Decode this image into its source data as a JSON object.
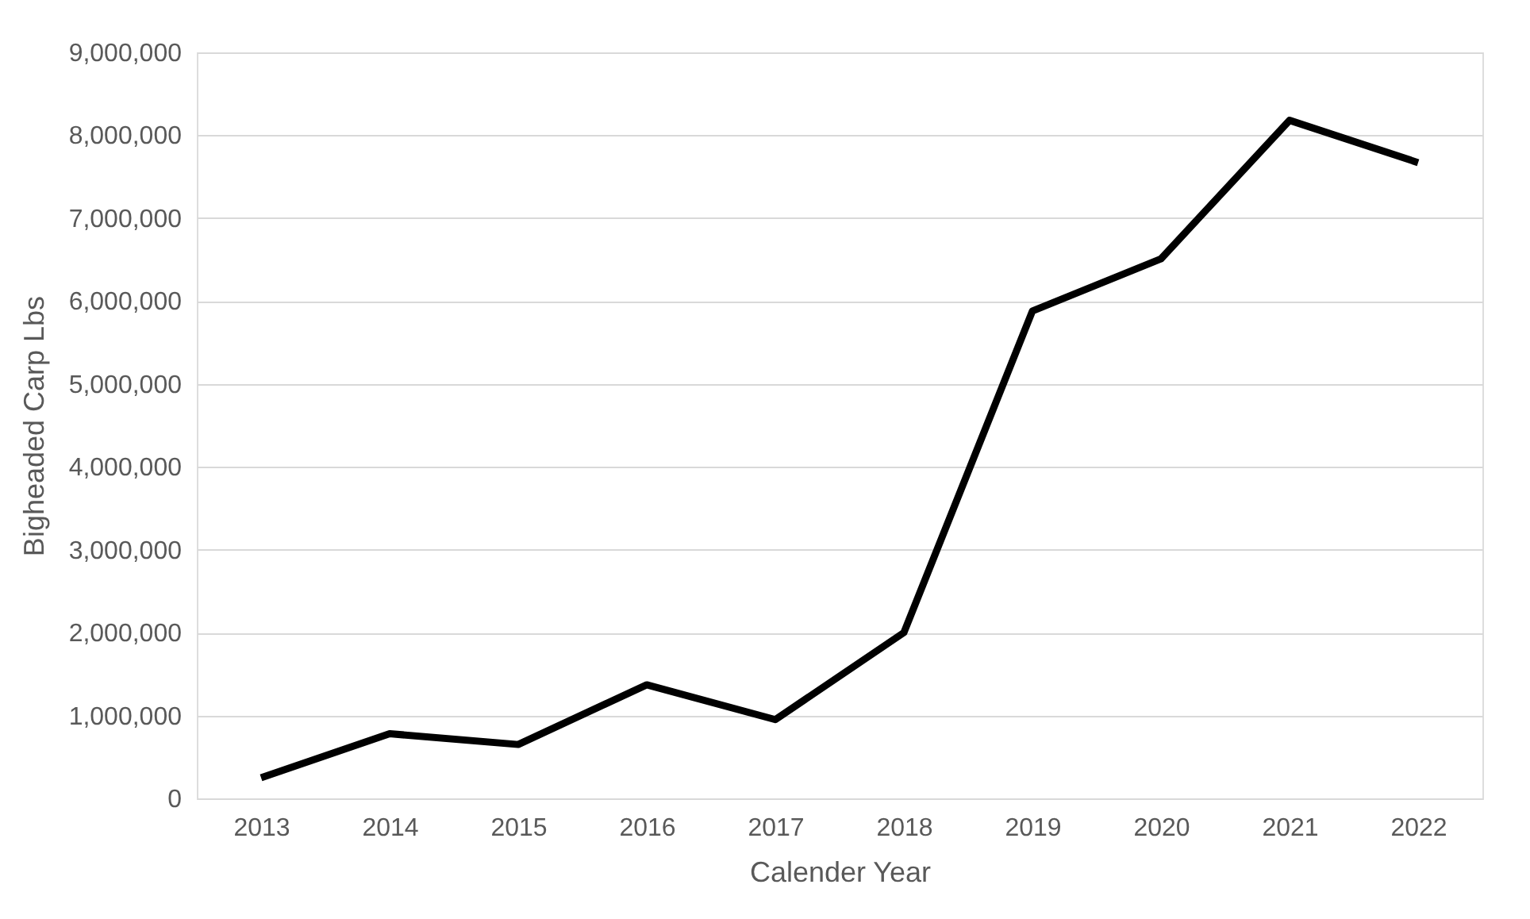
{
  "chart_data": {
    "type": "line",
    "xlabel": "Calender Year",
    "ylabel": "Bigheaded Carp Lbs",
    "categories": [
      "2013",
      "2014",
      "2015",
      "2016",
      "2017",
      "2018",
      "2019",
      "2020",
      "2021",
      "2022"
    ],
    "series": [
      {
        "color": "#000000",
        "values": [
          250000,
          780000,
          650000,
          1370000,
          950000,
          2000000,
          5880000,
          6510000,
          8180000,
          7670000
        ]
      }
    ],
    "ylim": [
      0,
      9000000
    ],
    "yticks": [
      0,
      {
        "value": 1000000,
        "label": "1,000,000"
      },
      {
        "value": 2000000,
        "label": "2,000,000"
      },
      {
        "value": 3000000,
        "label": "3,000,000"
      },
      {
        "value": 4000000,
        "label": "4,000,000"
      },
      {
        "value": 5000000,
        "label": "5,000,000"
      },
      {
        "value": 6000000,
        "label": "6,000,000"
      },
      {
        "value": 7000000,
        "label": "7,000,000"
      },
      {
        "value": 8000000,
        "label": "8,000,000"
      },
      {
        "value": 9000000,
        "label": "9,000,000"
      }
    ],
    "grid": "y",
    "marker": "none",
    "line_style": "solid"
  }
}
